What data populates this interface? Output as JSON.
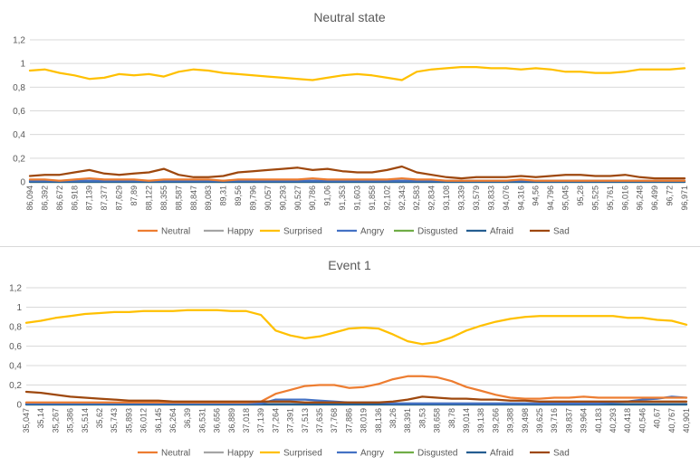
{
  "chart_data": [
    {
      "type": "line",
      "title": "Neutral state",
      "ylim": [
        0,
        1.2
      ],
      "yticks": [
        "0",
        "0,2",
        "0,4",
        "0,6",
        "0,8",
        "1",
        "1,2"
      ],
      "grid": true,
      "legend_position": "bottom",
      "x_tick_labels": [
        "86,094",
        "86,392",
        "86,672",
        "86,918",
        "87,139",
        "87,377",
        "87,629",
        "87,89",
        "88,122",
        "88,355",
        "88,587",
        "88,847",
        "89,083",
        "89,31",
        "89,56",
        "89,796",
        "90,057",
        "90,293",
        "90,527",
        "90,786",
        "91,06",
        "91,353",
        "91,603",
        "91,858",
        "92,102",
        "92,343",
        "92,583",
        "92,834",
        "93,108",
        "93,339",
        "93,579",
        "93,833",
        "94,076",
        "94,316",
        "94,56",
        "94,796",
        "95,045",
        "95,28",
        "95,525",
        "95,761",
        "96,016",
        "96,248",
        "96,499",
        "96,72",
        "96,971"
      ],
      "series": [
        {
          "name": "Neutral",
          "color": "#ED7D31",
          "values": [
            0.02,
            0.02,
            0.01,
            0.02,
            0.03,
            0.02,
            0.02,
            0.02,
            0.01,
            0.02,
            0.02,
            0.02,
            0.02,
            0.01,
            0.02,
            0.02,
            0.02,
            0.02,
            0.02,
            0.03,
            0.02,
            0.02,
            0.02,
            0.02,
            0.02,
            0.03,
            0.02,
            0.02,
            0.01,
            0.01,
            0.01,
            0.01,
            0.01,
            0.02,
            0.01,
            0.01,
            0.01,
            0.01,
            0.01,
            0.01,
            0.01,
            0.01,
            0.01,
            0.01,
            0.01
          ]
        },
        {
          "name": "Happy",
          "color": "#A5A5A5",
          "values": [
            0,
            0,
            0,
            0,
            0,
            0,
            0,
            0,
            0,
            0,
            0,
            0,
            0,
            0,
            0,
            0,
            0,
            0,
            0,
            0,
            0,
            0,
            0,
            0,
            0,
            0,
            0,
            0,
            0,
            0,
            0,
            0,
            0,
            0,
            0,
            0,
            0,
            0,
            0,
            0,
            0,
            0,
            0,
            0,
            0
          ]
        },
        {
          "name": "Surprised",
          "color": "#FFC000",
          "values": [
            0.94,
            0.95,
            0.92,
            0.9,
            0.87,
            0.88,
            0.91,
            0.9,
            0.91,
            0.89,
            0.93,
            0.95,
            0.94,
            0.92,
            0.91,
            0.9,
            0.89,
            0.88,
            0.87,
            0.86,
            0.88,
            0.9,
            0.91,
            0.9,
            0.88,
            0.86,
            0.93,
            0.95,
            0.96,
            0.97,
            0.97,
            0.96,
            0.96,
            0.95,
            0.96,
            0.95,
            0.93,
            0.93,
            0.92,
            0.92,
            0.93,
            0.95,
            0.95,
            0.95,
            0.96
          ]
        },
        {
          "name": "Angry",
          "color": "#4472C4",
          "values": [
            0.01,
            0.01,
            0.01,
            0.01,
            0.01,
            0.01,
            0.01,
            0.01,
            0.01,
            0.01,
            0.01,
            0.01,
            0.01,
            0.01,
            0.01,
            0.01,
            0.01,
            0.01,
            0.01,
            0.01,
            0.01,
            0.01,
            0.01,
            0.01,
            0.01,
            0.01,
            0.01,
            0.01,
            0.01,
            0.01,
            0.01,
            0.01,
            0.01,
            0.01,
            0.01,
            0.01,
            0.01,
            0.01,
            0.01,
            0.01,
            0.01,
            0.01,
            0.01,
            0.01,
            0.01
          ]
        },
        {
          "name": "Disgusted",
          "color": "#70AD47",
          "values": [
            0,
            0,
            0,
            0,
            0,
            0,
            0,
            0,
            0,
            0,
            0,
            0,
            0,
            0,
            0,
            0,
            0,
            0,
            0,
            0,
            0,
            0,
            0,
            0,
            0,
            0,
            0,
            0,
            0,
            0,
            0,
            0,
            0,
            0,
            0,
            0,
            0,
            0,
            0,
            0,
            0,
            0,
            0,
            0,
            0
          ]
        },
        {
          "name": "Afraid",
          "color": "#255E91",
          "values": [
            0,
            0,
            0,
            0,
            0,
            0,
            0,
            0,
            0,
            0,
            0,
            0,
            0,
            0,
            0,
            0,
            0,
            0,
            0,
            0,
            0,
            0,
            0,
            0,
            0,
            0,
            0,
            0,
            0,
            0,
            0,
            0,
            0,
            0,
            0,
            0,
            0,
            0,
            0,
            0,
            0,
            0,
            0,
            0,
            0
          ]
        },
        {
          "name": "Sad",
          "color": "#9E480E",
          "values": [
            0.05,
            0.06,
            0.06,
            0.08,
            0.1,
            0.07,
            0.06,
            0.07,
            0.08,
            0.11,
            0.06,
            0.04,
            0.04,
            0.05,
            0.08,
            0.09,
            0.1,
            0.11,
            0.12,
            0.1,
            0.11,
            0.09,
            0.08,
            0.08,
            0.1,
            0.13,
            0.08,
            0.06,
            0.04,
            0.03,
            0.04,
            0.04,
            0.04,
            0.05,
            0.04,
            0.05,
            0.06,
            0.06,
            0.05,
            0.05,
            0.06,
            0.04,
            0.03,
            0.03,
            0.03
          ]
        }
      ]
    },
    {
      "type": "line",
      "title": "Event 1",
      "ylim": [
        0,
        1.2
      ],
      "yticks": [
        "0",
        "0,2",
        "0,4",
        "0,6",
        "0,8",
        "1",
        "1,2"
      ],
      "grid": true,
      "legend_position": "bottom",
      "x_tick_labels": [
        "35,047",
        "35,14",
        "35,267",
        "35,386",
        "35,514",
        "35,62",
        "35,743",
        "35,893",
        "36,012",
        "36,145",
        "36,264",
        "36,39",
        "36,531",
        "36,656",
        "36,889",
        "37,018",
        "37,139",
        "37,264",
        "37,391",
        "37,513",
        "37,635",
        "37,768",
        "37,886",
        "38,019",
        "38,136",
        "38,26",
        "38,391",
        "38,53",
        "38,658",
        "38,78",
        "39,014",
        "39,138",
        "39,266",
        "39,388",
        "39,498",
        "39,625",
        "39,716",
        "39,837",
        "39,964",
        "40,183",
        "40,293",
        "40,418",
        "40,546",
        "40,67",
        "40,767",
        "40,901"
      ],
      "series": [
        {
          "name": "Neutral",
          "color": "#ED7D31",
          "values": [
            0.02,
            0.02,
            0.02,
            0.02,
            0.02,
            0.02,
            0.02,
            0.02,
            0.02,
            0.02,
            0.02,
            0.02,
            0.02,
            0.02,
            0.02,
            0.02,
            0.03,
            0.11,
            0.15,
            0.19,
            0.2,
            0.2,
            0.17,
            0.18,
            0.21,
            0.26,
            0.29,
            0.29,
            0.28,
            0.24,
            0.18,
            0.14,
            0.1,
            0.07,
            0.06,
            0.06,
            0.07,
            0.07,
            0.08,
            0.07,
            0.07,
            0.07,
            0.07,
            0.07,
            0.07,
            0.07
          ]
        },
        {
          "name": "Happy",
          "color": "#A5A5A5",
          "values": [
            0.01,
            0.01,
            0.01,
            0.01,
            0.01,
            0.01,
            0.01,
            0.01,
            0.01,
            0.01,
            0.01,
            0.01,
            0.01,
            0.01,
            0.01,
            0.01,
            0.01,
            0.01,
            0.01,
            0.01,
            0.01,
            0.01,
            0.01,
            0.01,
            0.01,
            0.01,
            0.01,
            0.01,
            0.01,
            0.01,
            0.01,
            0.01,
            0.01,
            0.01,
            0.01,
            0.01,
            0.01,
            0.01,
            0.01,
            0.01,
            0.01,
            0.01,
            0.01,
            0.01,
            0.01,
            0.01
          ]
        },
        {
          "name": "Surprised",
          "color": "#FFC000",
          "values": [
            0.84,
            0.86,
            0.89,
            0.91,
            0.93,
            0.94,
            0.95,
            0.95,
            0.96,
            0.96,
            0.96,
            0.97,
            0.97,
            0.97,
            0.96,
            0.96,
            0.92,
            0.76,
            0.71,
            0.68,
            0.7,
            0.74,
            0.78,
            0.79,
            0.78,
            0.72,
            0.65,
            0.62,
            0.64,
            0.69,
            0.76,
            0.81,
            0.85,
            0.88,
            0.9,
            0.91,
            0.91,
            0.91,
            0.91,
            0.91,
            0.91,
            0.89,
            0.89,
            0.87,
            0.86,
            0.82
          ]
        },
        {
          "name": "Angry",
          "color": "#4472C4",
          "values": [
            0.01,
            0.01,
            0.01,
            0.01,
            0.01,
            0.01,
            0.01,
            0.01,
            0.01,
            0.01,
            0.01,
            0.01,
            0.01,
            0.01,
            0.01,
            0.01,
            0.01,
            0.05,
            0.05,
            0.05,
            0.04,
            0.03,
            0.02,
            0.02,
            0.02,
            0.01,
            0.01,
            0.01,
            0.01,
            0.01,
            0.01,
            0.01,
            0.01,
            0.01,
            0.01,
            0.01,
            0.01,
            0.01,
            0.01,
            0.01,
            0.02,
            0.03,
            0.05,
            0.06,
            0.08,
            0.07
          ]
        },
        {
          "name": "Disgusted",
          "color": "#70AD47",
          "values": [
            0,
            0,
            0,
            0,
            0,
            0,
            0,
            0,
            0,
            0,
            0,
            0,
            0,
            0,
            0,
            0,
            0,
            0,
            0,
            0,
            0,
            0,
            0,
            0,
            0,
            0,
            0,
            0,
            0,
            0,
            0,
            0,
            0,
            0,
            0,
            0,
            0,
            0,
            0,
            0,
            0,
            0,
            0,
            0,
            0,
            0
          ]
        },
        {
          "name": "Afraid",
          "color": "#255E91",
          "values": [
            0,
            0,
            0,
            0,
            0,
            0,
            0,
            0,
            0,
            0,
            0,
            0,
            0,
            0,
            0,
            0,
            0,
            0,
            0,
            0,
            0,
            0,
            0,
            0,
            0,
            0,
            0,
            0,
            0,
            0,
            0,
            0,
            0,
            0,
            0,
            0,
            0,
            0,
            0,
            0,
            0,
            0,
            0,
            0,
            0,
            0
          ]
        },
        {
          "name": "Sad",
          "color": "#9E480E",
          "values": [
            0.13,
            0.12,
            0.1,
            0.08,
            0.07,
            0.06,
            0.05,
            0.04,
            0.04,
            0.04,
            0.03,
            0.03,
            0.03,
            0.03,
            0.03,
            0.03,
            0.03,
            0.03,
            0.03,
            0.02,
            0.02,
            0.02,
            0.02,
            0.02,
            0.02,
            0.03,
            0.05,
            0.08,
            0.07,
            0.06,
            0.06,
            0.05,
            0.05,
            0.04,
            0.04,
            0.03,
            0.03,
            0.03,
            0.03,
            0.03,
            0.03,
            0.03,
            0.03,
            0.03,
            0.03,
            0.03
          ]
        }
      ]
    }
  ]
}
